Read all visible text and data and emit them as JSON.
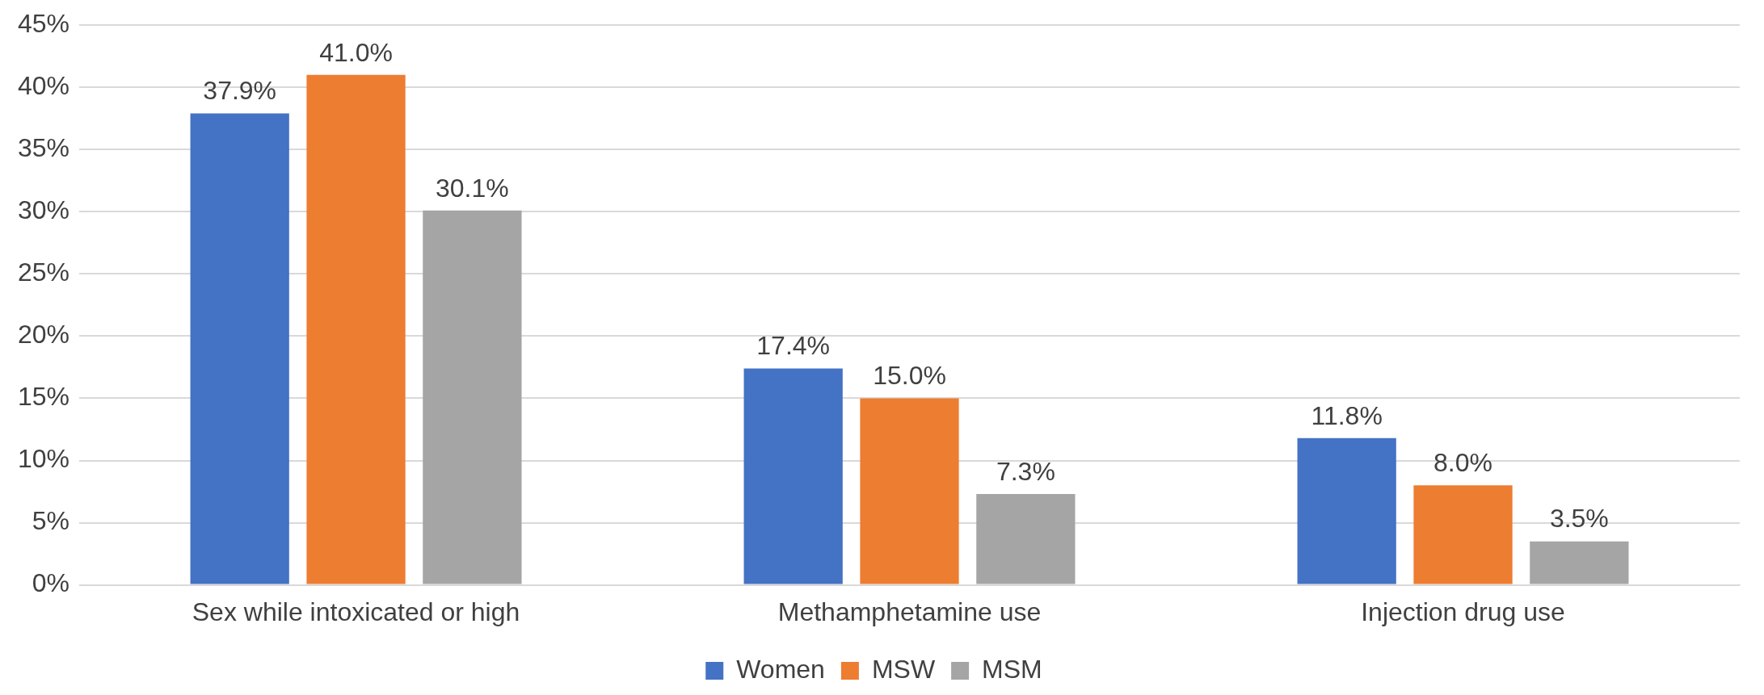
{
  "chart_data": {
    "type": "bar",
    "categories": [
      "Sex while intoxicated or high",
      "Methamphetamine use",
      "Injection drug use"
    ],
    "series": [
      {
        "name": "Women",
        "color": "#4472c4",
        "values": [
          37.9,
          17.4,
          11.8
        ],
        "value_labels": [
          "37.9%",
          "17.4%",
          "11.8%"
        ]
      },
      {
        "name": "MSW",
        "color": "#ed7d31",
        "values": [
          41.0,
          15.0,
          8.0
        ],
        "value_labels": [
          "41.0%",
          "15.0%",
          "8.0%"
        ]
      },
      {
        "name": "MSM",
        "color": "#a5a5a5",
        "values": [
          30.1,
          7.3,
          3.5
        ],
        "value_labels": [
          "30.1%",
          "7.3%",
          "3.5%"
        ]
      }
    ],
    "ylim": [
      0,
      45
    ],
    "yticks": [
      {
        "value": 0,
        "label": "0%"
      },
      {
        "value": 5,
        "label": "5%"
      },
      {
        "value": 10,
        "label": "10%"
      },
      {
        "value": 15,
        "label": "15%"
      },
      {
        "value": 20,
        "label": "20%"
      },
      {
        "value": 25,
        "label": "25%"
      },
      {
        "value": 30,
        "label": "30%"
      },
      {
        "value": 35,
        "label": "35%"
      },
      {
        "value": 40,
        "label": "40%"
      },
      {
        "value": 45,
        "label": "45%"
      }
    ],
    "grid": "y",
    "legend": "bottom"
  }
}
